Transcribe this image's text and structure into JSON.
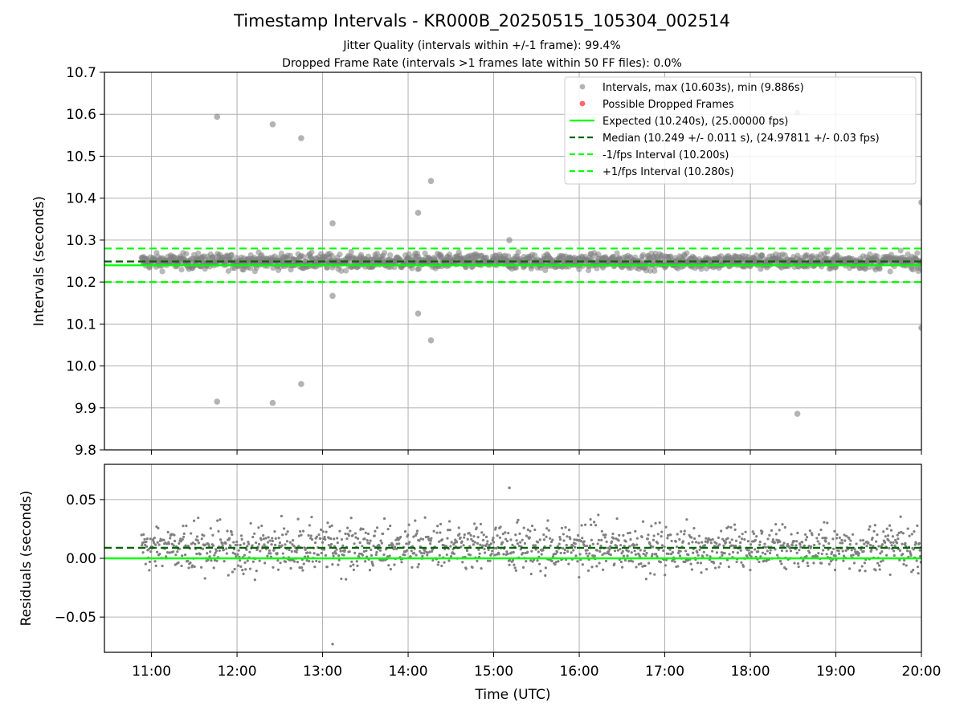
{
  "title": "Timestamp Intervals - KR000B_20250515_105304_002514",
  "subtitle_jitter": "Jitter Quality (intervals within +/-1 frame): 99.4%",
  "subtitle_dropped": "Dropped Frame Rate (intervals >1 frames late within 50 FF files): 0.0%",
  "colors": {
    "points": "#808080",
    "dropped": "#ff0000",
    "expected": "#00ff00",
    "median": "#006400",
    "bounds": "#00ff00",
    "grid": "#b0b0b0"
  },
  "chart_data": [
    {
      "type": "scatter",
      "panel": "intervals",
      "xlabel": "",
      "ylabel": "Intervals (seconds)",
      "xlim": [
        "10:27",
        "20:00"
      ],
      "ylim": [
        9.8,
        10.7
      ],
      "yticks": [
        "9.8",
        "9.9",
        "10.0",
        "10.1",
        "10.2",
        "10.3",
        "10.4",
        "10.5",
        "10.6",
        "10.7"
      ],
      "xticks": [
        "11:00",
        "12:00",
        "13:00",
        "14:00",
        "15:00",
        "16:00",
        "17:00",
        "18:00",
        "19:00",
        "20:00"
      ],
      "grid": true,
      "legend_position": "top-right",
      "legend": [
        {
          "label": "Intervals, max (10.603s), min (9.886s)",
          "kind": "dot-gray"
        },
        {
          "label": "Possible Dropped Frames",
          "kind": "dot-red"
        },
        {
          "label": "Expected (10.240s), (25.00000 fps)",
          "kind": "line-solid-lime"
        },
        {
          "label": "Median (10.249 +/- 0.011 s), (24.97811 +/- 0.03 fps)",
          "kind": "line-dash-darkgreen"
        },
        {
          "label": "-1/fps Interval (10.200s)",
          "kind": "line-dash-lime"
        },
        {
          "label": "+1/fps Interval (10.280s)",
          "kind": "line-dash-lime"
        }
      ],
      "reference_lines": {
        "expected": 10.24,
        "median": 10.249,
        "lower": 10.2,
        "upper": 10.28
      },
      "data_range": {
        "start": "10:53",
        "end": "20:00",
        "typical_min": 10.22,
        "typical_max": 10.275,
        "max": 10.603,
        "min": 9.886
      },
      "outliers": [
        {
          "x": "11:46",
          "y": 10.594
        },
        {
          "x": "11:46",
          "y": 9.915
        },
        {
          "x": "12:25",
          "y": 10.576
        },
        {
          "x": "12:25",
          "y": 9.912
        },
        {
          "x": "12:45",
          "y": 10.543
        },
        {
          "x": "12:45",
          "y": 9.957
        },
        {
          "x": "13:07",
          "y": 10.34
        },
        {
          "x": "13:07",
          "y": 10.167
        },
        {
          "x": "14:07",
          "y": 10.365
        },
        {
          "x": "14:07",
          "y": 10.125
        },
        {
          "x": "14:16",
          "y": 10.441
        },
        {
          "x": "14:16",
          "y": 10.061
        },
        {
          "x": "15:11",
          "y": 10.3
        },
        {
          "x": "18:33",
          "y": 10.603
        },
        {
          "x": "18:33",
          "y": 9.886
        },
        {
          "x": "20:00",
          "y": 10.39
        },
        {
          "x": "20:00",
          "y": 10.091
        }
      ]
    },
    {
      "type": "scatter",
      "panel": "residuals",
      "xlabel": "Time (UTC)",
      "ylabel": "Residuals (seconds)",
      "xlim": [
        "10:27",
        "20:00"
      ],
      "ylim": [
        -0.08,
        0.08
      ],
      "yticks": [
        "−0.05",
        "0.00",
        "0.05"
      ],
      "xticks": [
        "11:00",
        "12:00",
        "13:00",
        "14:00",
        "15:00",
        "16:00",
        "17:00",
        "18:00",
        "19:00",
        "20:00"
      ],
      "grid": true,
      "reference_lines": {
        "expected": 0.0,
        "median": 0.009
      },
      "data_range": {
        "start": "10:53",
        "end": "20:00",
        "typical_min": -0.02,
        "typical_max": 0.035
      },
      "outliers": [
        {
          "x": "15:11",
          "y": 0.06
        },
        {
          "x": "13:07",
          "y": -0.073
        }
      ]
    }
  ]
}
